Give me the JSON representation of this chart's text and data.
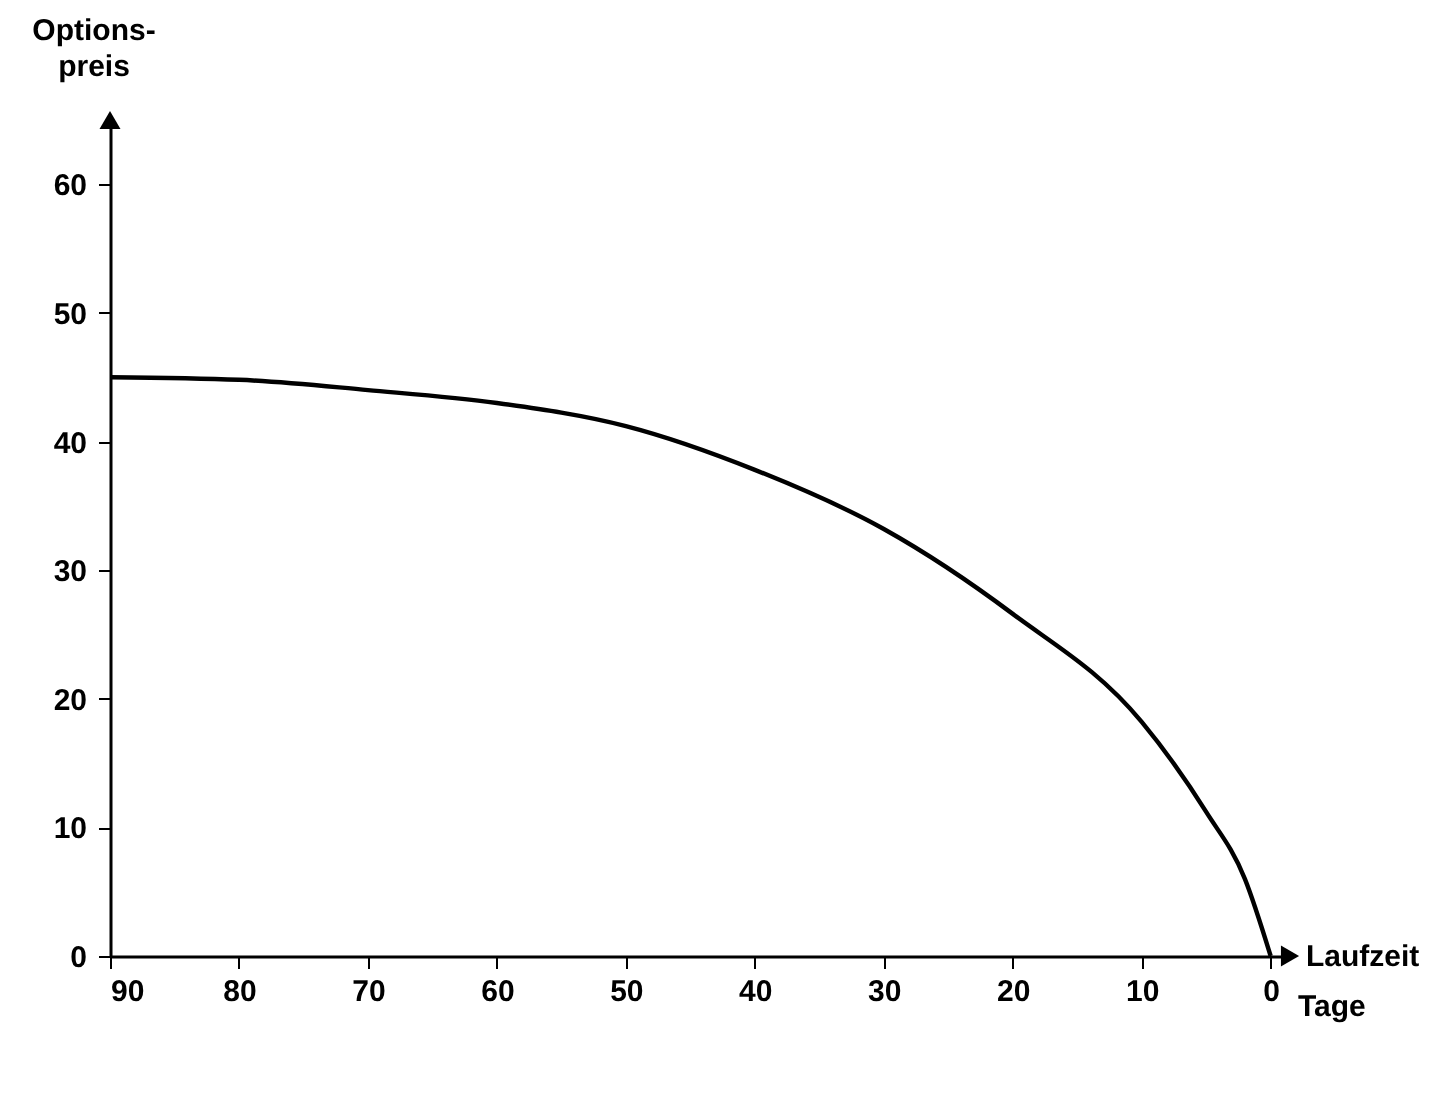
{
  "chart_data": {
    "type": "line",
    "ylabel": "Options-\npreis",
    "xlabel": "Laufzeit",
    "annotations": [
      "Tage"
    ],
    "x": [
      90,
      80,
      70,
      60,
      50,
      40,
      30,
      20,
      10,
      5,
      2,
      0
    ],
    "series": [
      {
        "color": "#000000",
        "values": [
          45,
          44.8,
          44,
          43,
          41.2,
          37.8,
          33.2,
          26.6,
          18.2,
          11.2,
          6,
          0
        ]
      }
    ],
    "xlim": [
      90,
      -1.5
    ],
    "xticks": [
      90,
      80,
      70,
      60,
      50,
      40,
      30,
      20,
      10,
      0
    ],
    "ylim": [
      0,
      65
    ],
    "yticks": [
      0,
      10,
      20,
      30,
      40,
      50,
      60
    ],
    "grid": false,
    "marker": "none",
    "line_style": "solid"
  }
}
